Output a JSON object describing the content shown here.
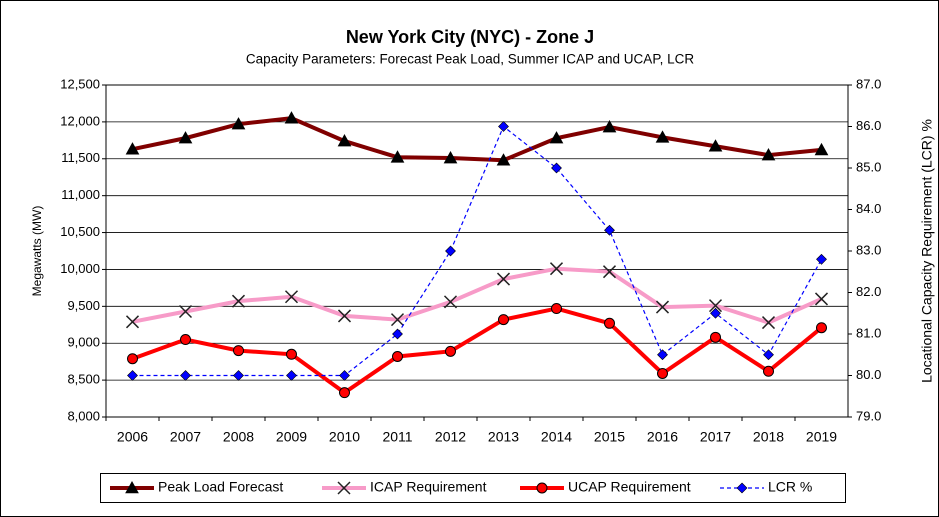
{
  "chart_data": {
    "type": "line",
    "title": "New York City (NYC) - Zone J",
    "subtitle": "Capacity Parameters: Forecast Peak Load, Summer ICAP and UCAP, LCR",
    "ylabel": "Megawatts  (MW)",
    "y2label": "Locational Capacity Requirement (LCR) %",
    "categories": [
      "2006",
      "2007",
      "2008",
      "2009",
      "2010",
      "2011",
      "2012",
      "2013",
      "2014",
      "2015",
      "2016",
      "2017",
      "2018",
      "2019"
    ],
    "series": [
      {
        "name": "Peak Load Forecast",
        "color": "#800000",
        "marker": "triangle",
        "dashed": false,
        "width": 4,
        "values": [
          11630,
          11780,
          11970,
          12050,
          11740,
          11520,
          11510,
          11480,
          11780,
          11930,
          11790,
          11670,
          11550,
          11620
        ]
      },
      {
        "name": "ICAP Requirement",
        "color": "#f79bc8",
        "marker": "x",
        "dashed": false,
        "width": 4,
        "values": [
          9290,
          9430,
          9570,
          9630,
          9370,
          9320,
          9560,
          9870,
          10010,
          9970,
          9490,
          9510,
          9280,
          9600
        ]
      },
      {
        "name": "UCAP Requirement",
        "color": "#ff0000",
        "marker": "circle",
        "dashed": false,
        "width": 4,
        "values": [
          8790,
          9050,
          8900,
          8850,
          8330,
          8820,
          8890,
          9320,
          9470,
          9270,
          8590,
          9080,
          8620,
          9210
        ]
      },
      {
        "name": "LCR %",
        "color": "#0000ff",
        "marker": "diamond",
        "dashed": true,
        "width": 1.2,
        "axis": "y2",
        "values": [
          80.0,
          80.0,
          80.0,
          80.0,
          80.0,
          81.0,
          83.0,
          86.0,
          85.0,
          83.5,
          80.5,
          81.5,
          80.5,
          82.8
        ]
      }
    ],
    "ylim": [
      8000,
      12500
    ],
    "yticks": [
      {
        "value": 8000,
        "label": "8,000"
      },
      {
        "value": 8500,
        "label": "8,500"
      },
      {
        "value": 9000,
        "label": "9,000"
      },
      {
        "value": 9500,
        "label": "9,500"
      },
      {
        "value": 10000,
        "label": "10,000"
      },
      {
        "value": 10500,
        "label": "10,500"
      },
      {
        "value": 11000,
        "label": "11,000"
      },
      {
        "value": 11500,
        "label": "11,500"
      },
      {
        "value": 12000,
        "label": "12,000"
      },
      {
        "value": 12500,
        "label": "12,500"
      }
    ],
    "y2lim": [
      79,
      87
    ],
    "y2ticks": [
      {
        "value": 79,
        "label": "79.0"
      },
      {
        "value": 80,
        "label": "80.0"
      },
      {
        "value": 81,
        "label": "81.0"
      },
      {
        "value": 82,
        "label": "82.0"
      },
      {
        "value": 83,
        "label": "83.0"
      },
      {
        "value": 84,
        "label": "84.0"
      },
      {
        "value": 85,
        "label": "85.0"
      },
      {
        "value": 86,
        "label": "86.0"
      },
      {
        "value": 87,
        "label": "87.0"
      }
    ],
    "grid": true,
    "legend": "bottom"
  }
}
